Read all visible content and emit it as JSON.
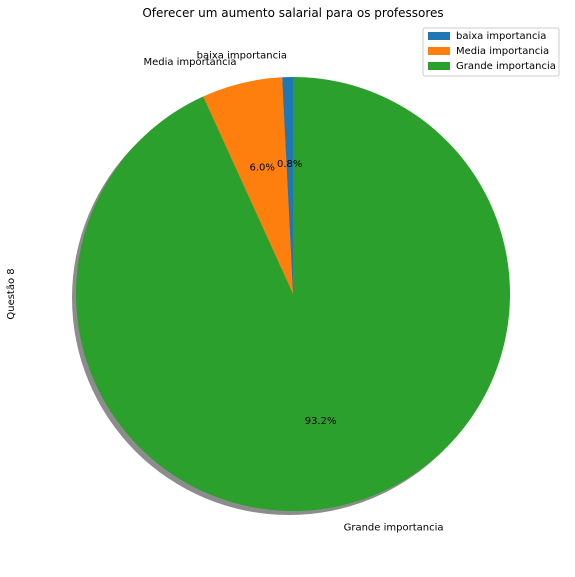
{
  "chart_data": {
    "type": "pie",
    "title": "Oferecer um aumento salarial para os professores",
    "ylabel": "Questão 8",
    "categories": [
      "baixa importancia",
      "Media importancia",
      "Grande importancia"
    ],
    "values": [
      0.8,
      6.0,
      93.2
    ],
    "percent_labels": [
      "0.8%",
      "6.0%",
      "93.2%"
    ],
    "colors": [
      "#1f77b4",
      "#ff7f0e",
      "#2ca02c"
    ],
    "start_angle_deg": 90,
    "direction": "counterclockwise",
    "shadow": true,
    "legend": {
      "placement": "top-right",
      "entries": [
        "baixa importancia",
        "Media importancia",
        "Grande importancia"
      ]
    }
  }
}
